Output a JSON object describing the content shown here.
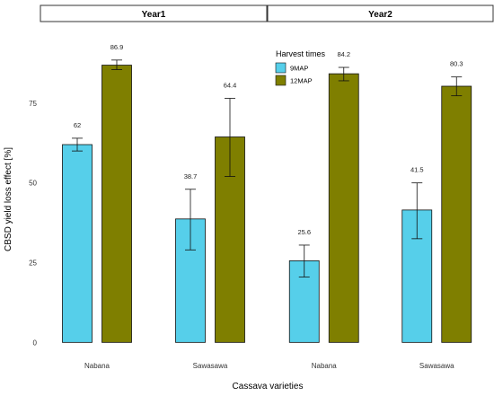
{
  "chart_data": {
    "type": "bar",
    "xlabel": "Cassava varieties",
    "ylabel": "CBSD yield loss effect [%]",
    "ylim": [
      -3,
      100
    ],
    "yticks": [
      0,
      25,
      50,
      75
    ],
    "grid": false,
    "legend": {
      "title": "Harvest times",
      "placement": "top-center",
      "entries": [
        {
          "name": "9MAP",
          "color": "#56CFEA"
        },
        {
          "name": "12MAP",
          "color": "#7F7F00"
        }
      ]
    },
    "categories": [
      "Nabana",
      "Sawasawa"
    ],
    "panels": [
      {
        "title": "Year1",
        "series": [
          {
            "name": "9MAP",
            "values": [
              62,
              38.7
            ],
            "labels": [
              "62",
              "38.7"
            ],
            "error": [
              [
                60,
                64
              ],
              [
                29,
                48
              ]
            ]
          },
          {
            "name": "12MAP",
            "values": [
              86.9,
              64.4
            ],
            "labels": [
              "86.9",
              "64.4"
            ],
            "error": [
              [
                85.5,
                88.5
              ],
              [
                52,
                76.5
              ]
            ]
          }
        ]
      },
      {
        "title": "Year2",
        "series": [
          {
            "name": "9MAP",
            "values": [
              25.6,
              41.5
            ],
            "labels": [
              "25.6",
              "41.5"
            ],
            "error": [
              [
                20.5,
                30.5
              ],
              [
                32.5,
                50
              ]
            ]
          },
          {
            "name": "12MAP",
            "values": [
              84.2,
              80.3
            ],
            "labels": [
              "84.2",
              "80.3"
            ],
            "error": [
              [
                82,
                86.2
              ],
              [
                77.3,
                83.2
              ]
            ]
          }
        ]
      }
    ]
  }
}
